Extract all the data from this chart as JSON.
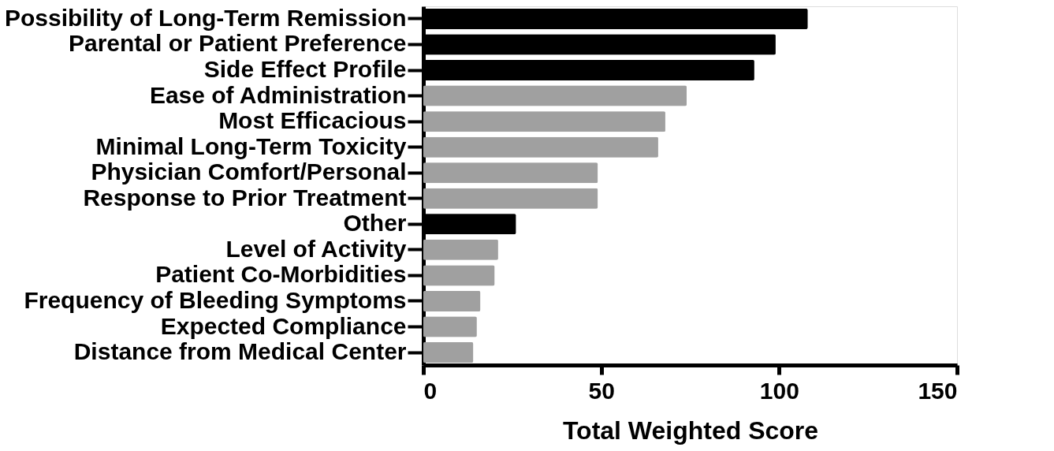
{
  "chart_data": {
    "type": "bar",
    "orientation": "horizontal",
    "xlabel": "Total Weighted Score",
    "categories": [
      "Possibility of Long-Term Remission",
      "Parental or Patient Preference",
      "Side Effect Profile",
      "Ease of Administration",
      "Most Efficacious",
      "Minimal Long-Term Toxicity",
      "Physician Comfort/Personal",
      "Response to Prior Treatment",
      "Other",
      "Level of Activity",
      "Patient Co-Morbidities",
      "Frequency of Bleeding Symptoms",
      "Expected Compliance",
      "Distance from Medical Center"
    ],
    "values": [
      108,
      99,
      93,
      74,
      68,
      66,
      49,
      49,
      26,
      21,
      20,
      16,
      15,
      14
    ],
    "colors": [
      "#000000",
      "#000000",
      "#000000",
      "#a0a0a0",
      "#a0a0a0",
      "#a0a0a0",
      "#a0a0a0",
      "#a0a0a0",
      "#000000",
      "#a0a0a0",
      "#a0a0a0",
      "#a0a0a0",
      "#a0a0a0",
      "#a0a0a0"
    ],
    "xlim": [
      0,
      150
    ],
    "xticks": [
      0,
      50,
      100,
      150
    ]
  }
}
